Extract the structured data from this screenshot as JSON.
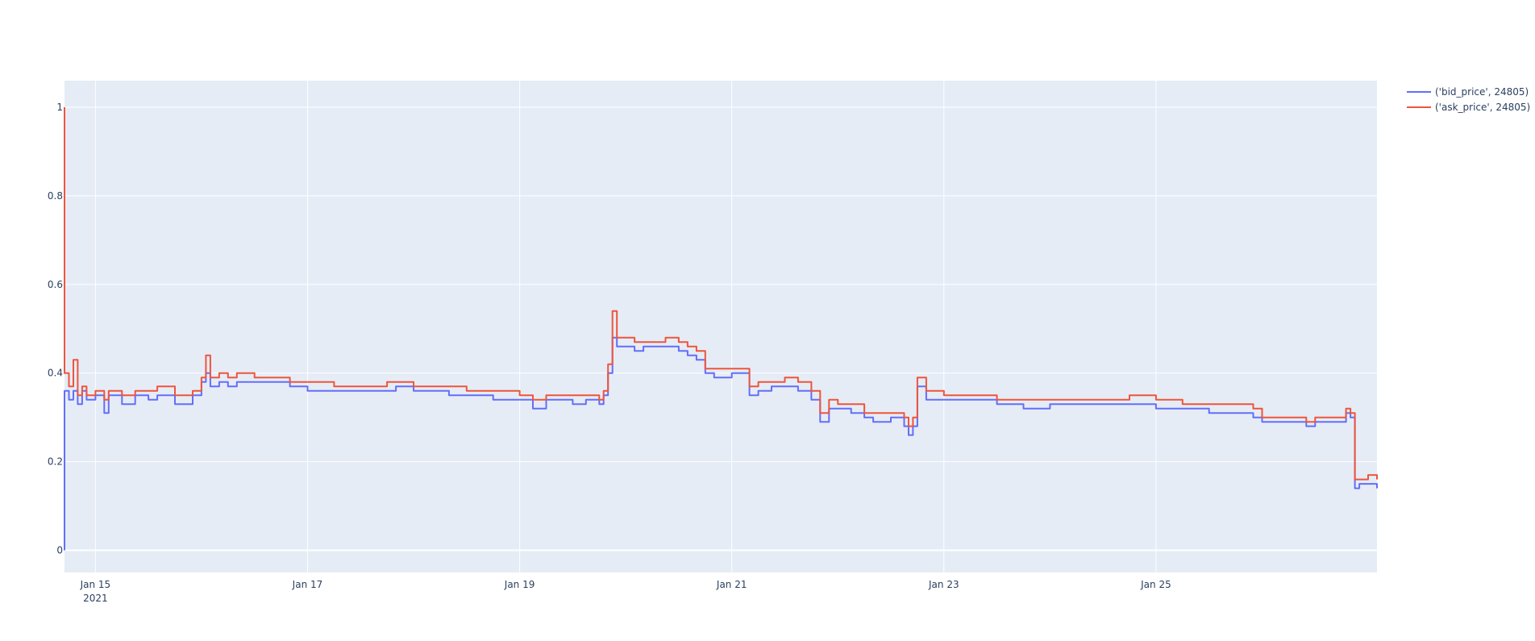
{
  "chart_data": {
    "type": "line",
    "title": "",
    "xlabel": "",
    "ylabel": "",
    "xlim": [
      "2021-01-14 17:00",
      "2021-01-27 02:00"
    ],
    "ylim": [
      -0.05,
      1.06
    ],
    "grid": true,
    "legend": "top-right",
    "x_ticks": [
      {
        "x": "2021-01-15 00:00",
        "label": "Jan 15",
        "sublabel": "2021"
      },
      {
        "x": "2021-01-17 00:00",
        "label": "Jan 17"
      },
      {
        "x": "2021-01-19 00:00",
        "label": "Jan 19"
      },
      {
        "x": "2021-01-21 00:00",
        "label": "Jan 21"
      },
      {
        "x": "2021-01-23 00:00",
        "label": "Jan 23"
      },
      {
        "x": "2021-01-25 00:00",
        "label": "Jan 25"
      }
    ],
    "y_ticks": [
      {
        "y": 0,
        "label": "0"
      },
      {
        "y": 0.2,
        "label": "0.2"
      },
      {
        "y": 0.4,
        "label": "0.4"
      },
      {
        "y": 0.6,
        "label": "0.6"
      },
      {
        "y": 0.8,
        "label": "0.8"
      },
      {
        "y": 1,
        "label": "1"
      }
    ],
    "series": [
      {
        "name": "('bid_price', 24805)",
        "color": "#636efa",
        "points": [
          [
            "2021-01-14 17:00",
            0.0
          ],
          [
            "2021-01-14 17:00",
            0.36
          ],
          [
            "2021-01-14 18:00",
            0.34
          ],
          [
            "2021-01-14 19:00",
            0.36
          ],
          [
            "2021-01-14 20:00",
            0.33
          ],
          [
            "2021-01-14 21:00",
            0.36
          ],
          [
            "2021-01-14 22:00",
            0.34
          ],
          [
            "2021-01-15 00:00",
            0.35
          ],
          [
            "2021-01-15 02:00",
            0.31
          ],
          [
            "2021-01-15 03:00",
            0.35
          ],
          [
            "2021-01-15 06:00",
            0.33
          ],
          [
            "2021-01-15 09:00",
            0.35
          ],
          [
            "2021-01-15 12:00",
            0.34
          ],
          [
            "2021-01-15 14:00",
            0.35
          ],
          [
            "2021-01-15 18:00",
            0.33
          ],
          [
            "2021-01-15 22:00",
            0.35
          ],
          [
            "2021-01-16 00:00",
            0.38
          ],
          [
            "2021-01-16 01:00",
            0.4
          ],
          [
            "2021-01-16 02:00",
            0.37
          ],
          [
            "2021-01-16 04:00",
            0.38
          ],
          [
            "2021-01-16 06:00",
            0.37
          ],
          [
            "2021-01-16 08:00",
            0.38
          ],
          [
            "2021-01-16 12:00",
            0.38
          ],
          [
            "2021-01-16 18:00",
            0.38
          ],
          [
            "2021-01-16 20:00",
            0.37
          ],
          [
            "2021-01-17 00:00",
            0.36
          ],
          [
            "2021-01-17 06:00",
            0.36
          ],
          [
            "2021-01-17 12:00",
            0.36
          ],
          [
            "2021-01-17 18:00",
            0.36
          ],
          [
            "2021-01-17 20:00",
            0.37
          ],
          [
            "2021-01-18 00:00",
            0.36
          ],
          [
            "2021-01-18 06:00",
            0.36
          ],
          [
            "2021-01-18 08:00",
            0.35
          ],
          [
            "2021-01-18 12:00",
            0.35
          ],
          [
            "2021-01-18 18:00",
            0.34
          ],
          [
            "2021-01-19 00:00",
            0.34
          ],
          [
            "2021-01-19 03:00",
            0.32
          ],
          [
            "2021-01-19 06:00",
            0.34
          ],
          [
            "2021-01-19 12:00",
            0.33
          ],
          [
            "2021-01-19 15:00",
            0.34
          ],
          [
            "2021-01-19 18:00",
            0.33
          ],
          [
            "2021-01-19 19:00",
            0.35
          ],
          [
            "2021-01-19 20:00",
            0.4
          ],
          [
            "2021-01-19 21:00",
            0.48
          ],
          [
            "2021-01-19 22:00",
            0.46
          ],
          [
            "2021-01-20 00:00",
            0.46
          ],
          [
            "2021-01-20 02:00",
            0.45
          ],
          [
            "2021-01-20 04:00",
            0.46
          ],
          [
            "2021-01-20 06:00",
            0.46
          ],
          [
            "2021-01-20 09:00",
            0.46
          ],
          [
            "2021-01-20 12:00",
            0.45
          ],
          [
            "2021-01-20 14:00",
            0.44
          ],
          [
            "2021-01-20 16:00",
            0.43
          ],
          [
            "2021-01-20 18:00",
            0.4
          ],
          [
            "2021-01-20 20:00",
            0.39
          ],
          [
            "2021-01-21 00:00",
            0.4
          ],
          [
            "2021-01-21 03:00",
            0.4
          ],
          [
            "2021-01-21 04:00",
            0.35
          ],
          [
            "2021-01-21 06:00",
            0.36
          ],
          [
            "2021-01-21 09:00",
            0.37
          ],
          [
            "2021-01-21 12:00",
            0.37
          ],
          [
            "2021-01-21 15:00",
            0.36
          ],
          [
            "2021-01-21 18:00",
            0.34
          ],
          [
            "2021-01-21 20:00",
            0.29
          ],
          [
            "2021-01-21 22:00",
            0.32
          ],
          [
            "2021-01-22 00:00",
            0.32
          ],
          [
            "2021-01-22 03:00",
            0.31
          ],
          [
            "2021-01-22 06:00",
            0.3
          ],
          [
            "2021-01-22 08:00",
            0.29
          ],
          [
            "2021-01-22 12:00",
            0.3
          ],
          [
            "2021-01-22 15:00",
            0.28
          ],
          [
            "2021-01-22 16:00",
            0.26
          ],
          [
            "2021-01-22 17:00",
            0.28
          ],
          [
            "2021-01-22 18:00",
            0.37
          ],
          [
            "2021-01-22 20:00",
            0.34
          ],
          [
            "2021-01-23 00:00",
            0.34
          ],
          [
            "2021-01-23 06:00",
            0.34
          ],
          [
            "2021-01-23 12:00",
            0.33
          ],
          [
            "2021-01-23 18:00",
            0.32
          ],
          [
            "2021-01-24 00:00",
            0.33
          ],
          [
            "2021-01-24 06:00",
            0.33
          ],
          [
            "2021-01-24 12:00",
            0.33
          ],
          [
            "2021-01-24 18:00",
            0.33
          ],
          [
            "2021-01-25 00:00",
            0.32
          ],
          [
            "2021-01-25 06:00",
            0.32
          ],
          [
            "2021-01-25 12:00",
            0.31
          ],
          [
            "2021-01-25 18:00",
            0.31
          ],
          [
            "2021-01-25 22:00",
            0.3
          ],
          [
            "2021-01-26 00:00",
            0.29
          ],
          [
            "2021-01-26 06:00",
            0.29
          ],
          [
            "2021-01-26 10:00",
            0.28
          ],
          [
            "2021-01-26 12:00",
            0.29
          ],
          [
            "2021-01-26 18:00",
            0.29
          ],
          [
            "2021-01-26 19:00",
            0.31
          ],
          [
            "2021-01-26 20:00",
            0.3
          ],
          [
            "2021-01-26 21:00",
            0.14
          ],
          [
            "2021-01-26 22:00",
            0.15
          ],
          [
            "2021-01-27 00:00",
            0.15
          ],
          [
            "2021-01-27 02:00",
            0.14
          ]
        ]
      },
      {
        "name": "('ask_price', 24805)",
        "color": "#ef553b",
        "points": [
          [
            "2021-01-14 17:00",
            1.0
          ],
          [
            "2021-01-14 17:00",
            0.4
          ],
          [
            "2021-01-14 18:00",
            0.37
          ],
          [
            "2021-01-14 19:00",
            0.43
          ],
          [
            "2021-01-14 20:00",
            0.35
          ],
          [
            "2021-01-14 21:00",
            0.37
          ],
          [
            "2021-01-14 22:00",
            0.35
          ],
          [
            "2021-01-15 00:00",
            0.36
          ],
          [
            "2021-01-15 02:00",
            0.34
          ],
          [
            "2021-01-15 03:00",
            0.36
          ],
          [
            "2021-01-15 06:00",
            0.35
          ],
          [
            "2021-01-15 09:00",
            0.36
          ],
          [
            "2021-01-15 12:00",
            0.36
          ],
          [
            "2021-01-15 14:00",
            0.37
          ],
          [
            "2021-01-15 18:00",
            0.35
          ],
          [
            "2021-01-15 22:00",
            0.36
          ],
          [
            "2021-01-16 00:00",
            0.39
          ],
          [
            "2021-01-16 01:00",
            0.44
          ],
          [
            "2021-01-16 02:00",
            0.39
          ],
          [
            "2021-01-16 04:00",
            0.4
          ],
          [
            "2021-01-16 06:00",
            0.39
          ],
          [
            "2021-01-16 08:00",
            0.4
          ],
          [
            "2021-01-16 12:00",
            0.39
          ],
          [
            "2021-01-16 18:00",
            0.39
          ],
          [
            "2021-01-16 20:00",
            0.38
          ],
          [
            "2021-01-17 00:00",
            0.38
          ],
          [
            "2021-01-17 06:00",
            0.37
          ],
          [
            "2021-01-17 12:00",
            0.37
          ],
          [
            "2021-01-17 18:00",
            0.38
          ],
          [
            "2021-01-17 20:00",
            0.38
          ],
          [
            "2021-01-18 00:00",
            0.37
          ],
          [
            "2021-01-18 06:00",
            0.37
          ],
          [
            "2021-01-18 08:00",
            0.37
          ],
          [
            "2021-01-18 12:00",
            0.36
          ],
          [
            "2021-01-18 18:00",
            0.36
          ],
          [
            "2021-01-19 00:00",
            0.35
          ],
          [
            "2021-01-19 03:00",
            0.34
          ],
          [
            "2021-01-19 06:00",
            0.35
          ],
          [
            "2021-01-19 12:00",
            0.35
          ],
          [
            "2021-01-19 15:00",
            0.35
          ],
          [
            "2021-01-19 18:00",
            0.34
          ],
          [
            "2021-01-19 19:00",
            0.36
          ],
          [
            "2021-01-19 20:00",
            0.42
          ],
          [
            "2021-01-19 21:00",
            0.54
          ],
          [
            "2021-01-19 22:00",
            0.48
          ],
          [
            "2021-01-20 00:00",
            0.48
          ],
          [
            "2021-01-20 02:00",
            0.47
          ],
          [
            "2021-01-20 04:00",
            0.47
          ],
          [
            "2021-01-20 06:00",
            0.47
          ],
          [
            "2021-01-20 09:00",
            0.48
          ],
          [
            "2021-01-20 12:00",
            0.47
          ],
          [
            "2021-01-20 14:00",
            0.46
          ],
          [
            "2021-01-20 16:00",
            0.45
          ],
          [
            "2021-01-20 18:00",
            0.41
          ],
          [
            "2021-01-20 20:00",
            0.41
          ],
          [
            "2021-01-21 00:00",
            0.41
          ],
          [
            "2021-01-21 03:00",
            0.41
          ],
          [
            "2021-01-21 04:00",
            0.37
          ],
          [
            "2021-01-21 06:00",
            0.38
          ],
          [
            "2021-01-21 09:00",
            0.38
          ],
          [
            "2021-01-21 12:00",
            0.39
          ],
          [
            "2021-01-21 15:00",
            0.38
          ],
          [
            "2021-01-21 18:00",
            0.36
          ],
          [
            "2021-01-21 20:00",
            0.31
          ],
          [
            "2021-01-21 22:00",
            0.34
          ],
          [
            "2021-01-22 00:00",
            0.33
          ],
          [
            "2021-01-22 03:00",
            0.33
          ],
          [
            "2021-01-22 06:00",
            0.31
          ],
          [
            "2021-01-22 08:00",
            0.31
          ],
          [
            "2021-01-22 12:00",
            0.31
          ],
          [
            "2021-01-22 15:00",
            0.3
          ],
          [
            "2021-01-22 16:00",
            0.28
          ],
          [
            "2021-01-22 17:00",
            0.3
          ],
          [
            "2021-01-22 18:00",
            0.39
          ],
          [
            "2021-01-22 20:00",
            0.36
          ],
          [
            "2021-01-23 00:00",
            0.35
          ],
          [
            "2021-01-23 06:00",
            0.35
          ],
          [
            "2021-01-23 12:00",
            0.34
          ],
          [
            "2021-01-23 18:00",
            0.34
          ],
          [
            "2021-01-24 00:00",
            0.34
          ],
          [
            "2021-01-24 06:00",
            0.34
          ],
          [
            "2021-01-24 12:00",
            0.34
          ],
          [
            "2021-01-24 18:00",
            0.35
          ],
          [
            "2021-01-25 00:00",
            0.34
          ],
          [
            "2021-01-25 06:00",
            0.33
          ],
          [
            "2021-01-25 12:00",
            0.33
          ],
          [
            "2021-01-25 18:00",
            0.33
          ],
          [
            "2021-01-25 22:00",
            0.32
          ],
          [
            "2021-01-26 00:00",
            0.3
          ],
          [
            "2021-01-26 06:00",
            0.3
          ],
          [
            "2021-01-26 10:00",
            0.29
          ],
          [
            "2021-01-26 12:00",
            0.3
          ],
          [
            "2021-01-26 18:00",
            0.3
          ],
          [
            "2021-01-26 19:00",
            0.32
          ],
          [
            "2021-01-26 20:00",
            0.31
          ],
          [
            "2021-01-26 21:00",
            0.16
          ],
          [
            "2021-01-26 22:00",
            0.16
          ],
          [
            "2021-01-27 00:00",
            0.17
          ],
          [
            "2021-01-27 02:00",
            0.16
          ]
        ]
      }
    ]
  }
}
